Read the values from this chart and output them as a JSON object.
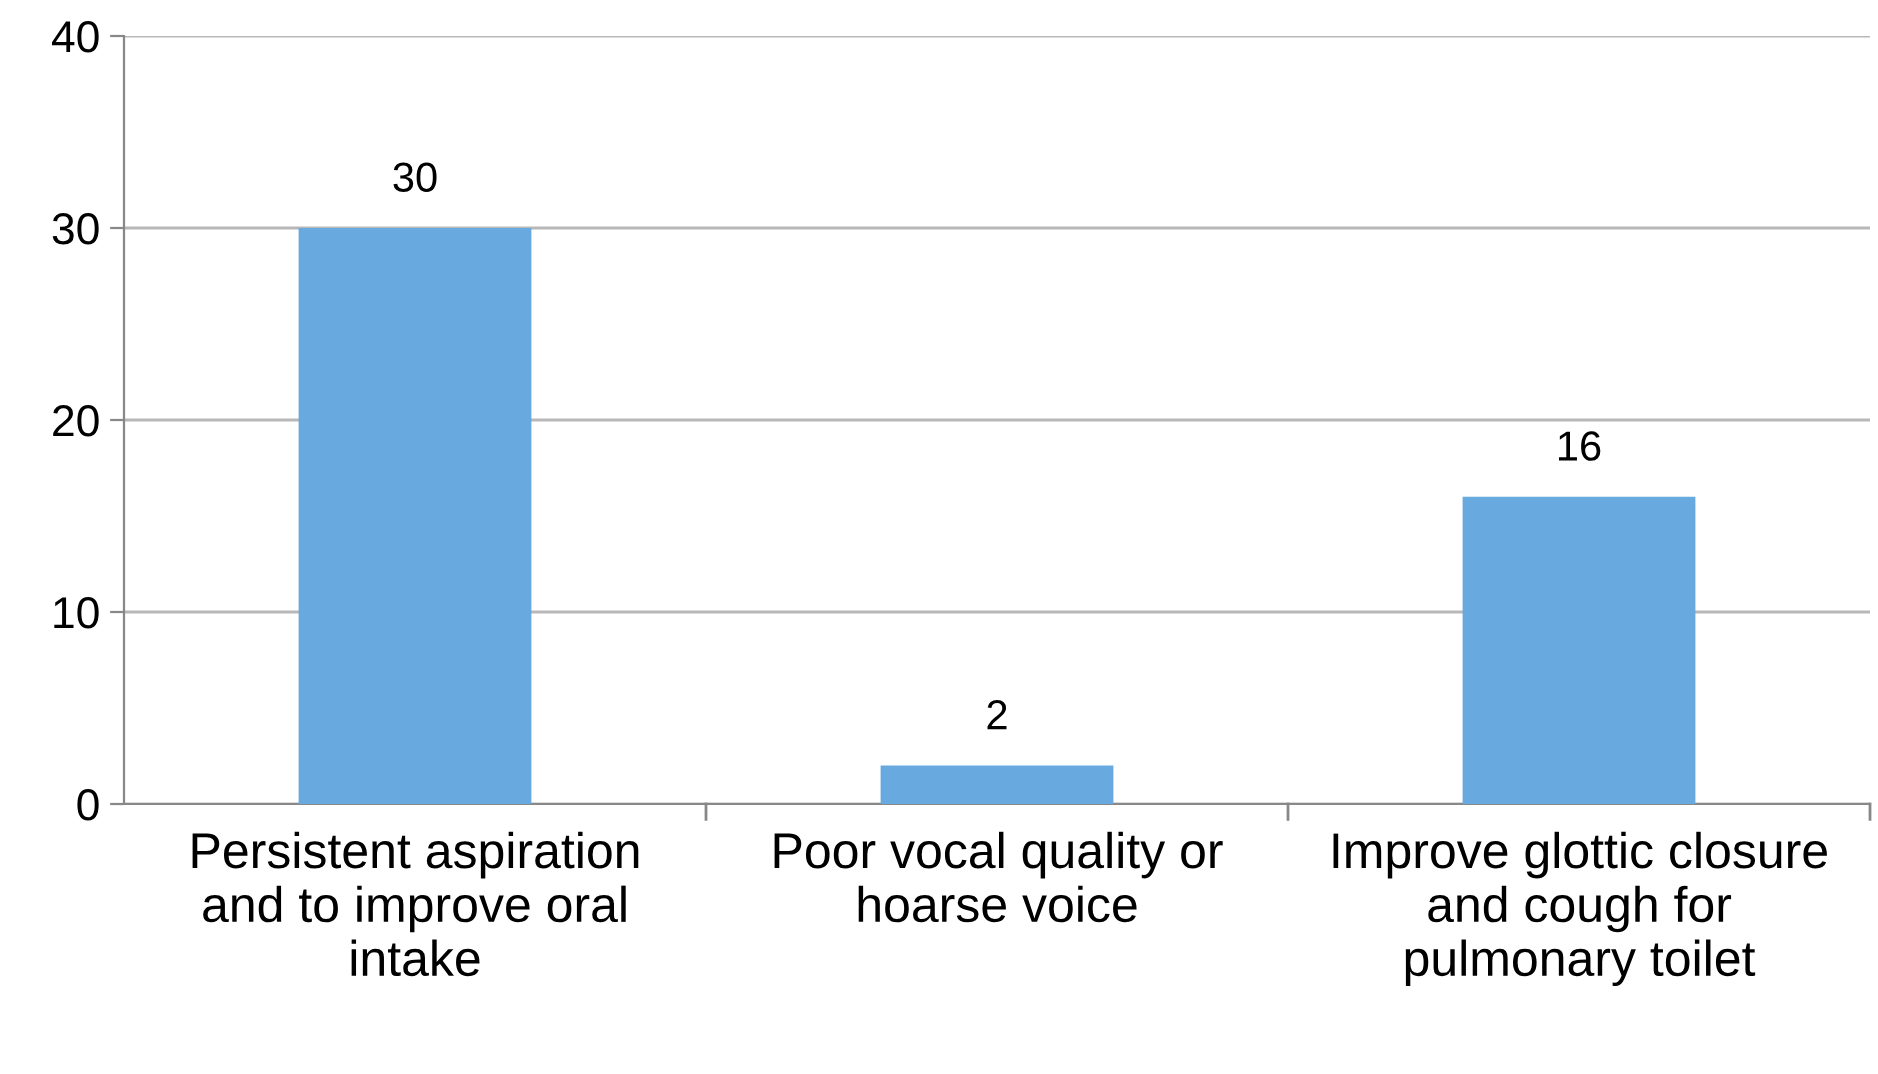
{
  "chart_data": {
    "type": "bar",
    "categories": [
      "Persistent aspiration\nand to improve oral\nintake",
      "Poor vocal quality or\nhoarse voice",
      "Improve glottic closure\nand cough for\npulmonary toilet"
    ],
    "values": [
      30,
      2,
      16
    ],
    "color": "#68aadf",
    "ylim": [
      0,
      40
    ],
    "yticks": [
      0,
      10,
      20,
      30,
      40
    ],
    "grid": "y",
    "data_labels": true,
    "legend": false
  }
}
